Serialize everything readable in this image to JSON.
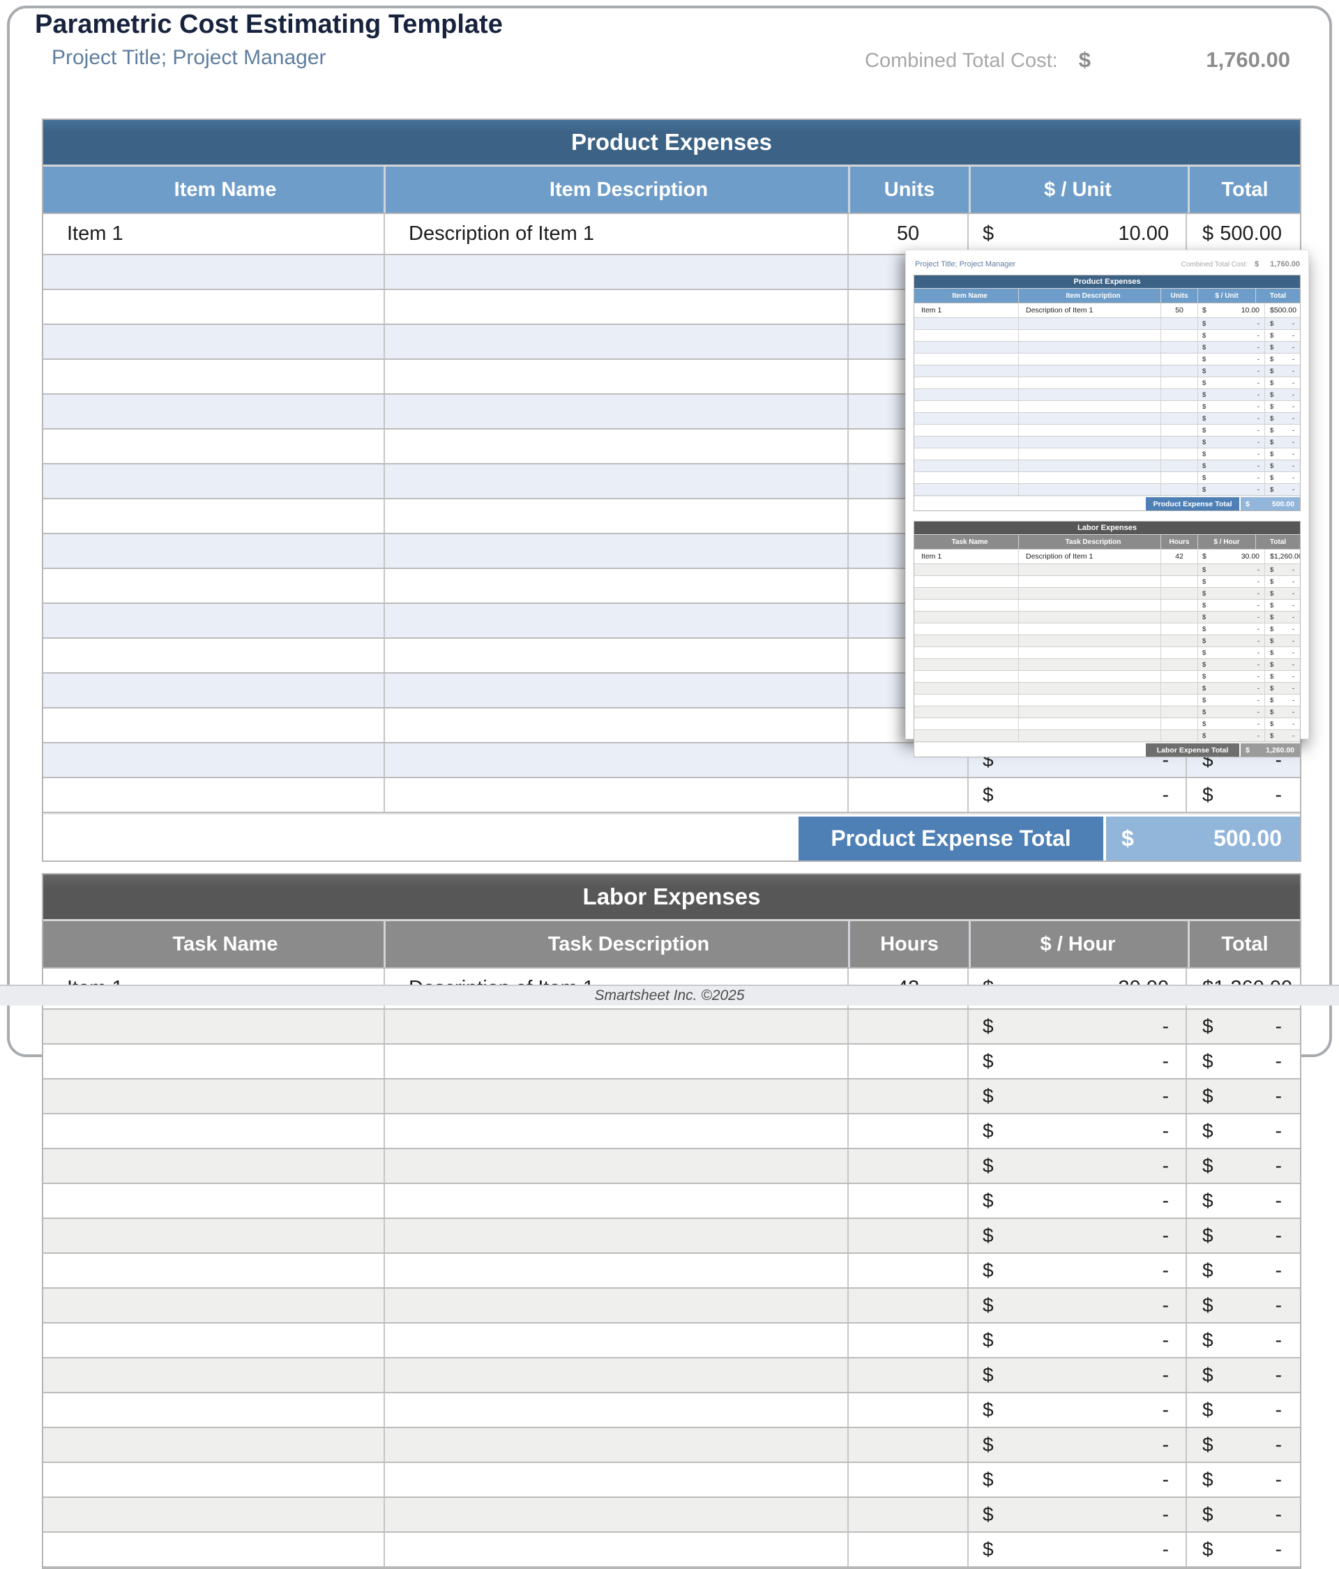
{
  "page": {
    "title": "Parametric Cost Estimating Template",
    "subtitle": "Project Title; Project Manager",
    "combined_total_label": "Combined Total Cost:",
    "combined_total_value": "1,760.00",
    "footer": "Smartsheet Inc. ©2025"
  },
  "money": {
    "symbol": "$",
    "empty_placeholder": "-"
  },
  "product_table": {
    "title": "Product Expenses",
    "columns": [
      "Item Name",
      "Item Description",
      "Units",
      "$ / Unit",
      "Total"
    ],
    "rows": [
      {
        "name": "Item 1",
        "description": "Description of Item 1",
        "units": "50",
        "unit_cost": "10.00",
        "total": "500.00"
      }
    ],
    "empty_row_count": 16,
    "total_label": "Product Expense Total",
    "total_value": "500.00"
  },
  "labor_table": {
    "title": "Labor Expenses",
    "columns": [
      "Task Name",
      "Task Description",
      "Hours",
      "$ / Hour",
      "Total"
    ],
    "rows": [
      {
        "name": "Item 1",
        "description": "Description of Item 1",
        "hours": "42",
        "hour_cost": "30.00",
        "total": "1,260.00"
      }
    ],
    "empty_row_count": 16,
    "total_label": "Labor Expense Total",
    "total_value": "1,260.00"
  },
  "inset_preview": {
    "subtitle": "Project Title; Project Manager",
    "combined_total_label": "Combined Total Cost:",
    "combined_total_value": "1,760.00",
    "product_empty_rows": 15,
    "labor_empty_rows": 15
  },
  "colors": {
    "title_text": "#17233E",
    "subtitle_text": "#5E7E9E",
    "muted_label": "#A7A7A7",
    "muted_value": "#8C8C8C",
    "blue_bar_hi": "#47719A",
    "product_title_bar": "#3C6285",
    "product_header": "#6F9DC9",
    "product_row_alt": "#E9EEF7",
    "product_total_label_bg": "#4E80B6",
    "product_total_value_bg": "#92B5DA",
    "labor_title_bar": "#575757",
    "labor_header": "#8B8B8B",
    "labor_row_alt": "#EFEFED",
    "labor_total_label_bg": "#6E6E6E",
    "labor_total_value_bg": "#9B9B9B",
    "page_border": "#A8ACB0",
    "footer_bg": "#EBECF0",
    "footer_text": "#4A4A4A",
    "cell_text": "#1C1C1C"
  }
}
